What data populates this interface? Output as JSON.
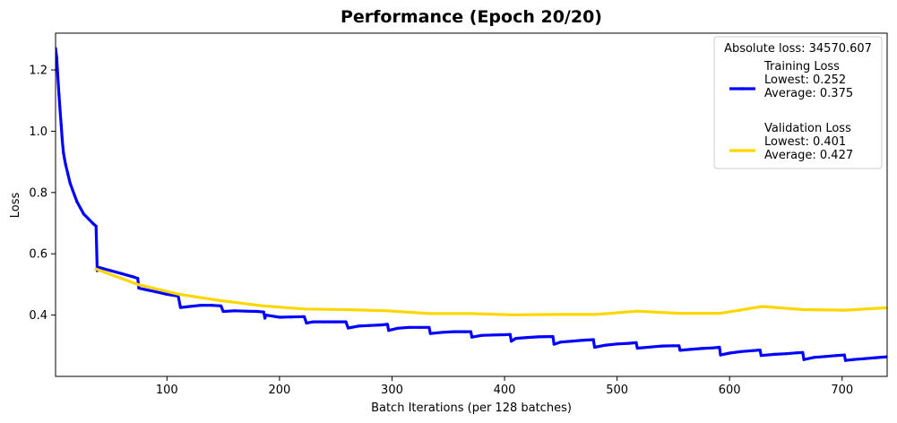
{
  "chart_data": {
    "type": "line",
    "title": "Performance (Epoch 20/20)",
    "xlabel": "Batch Iterations (per 128 batches)",
    "ylabel": "Loss",
    "xlim": [
      1,
      740
    ],
    "ylim": [
      0.2,
      1.32
    ],
    "x_ticks": [
      100,
      200,
      300,
      400,
      500,
      600,
      700
    ],
    "y_ticks": [
      0.4,
      0.6,
      0.8,
      1.0,
      1.2
    ],
    "grid": false,
    "legend": {
      "placement": "top-right",
      "title": "Absolute loss: 34570.607",
      "entries": [
        {
          "series": "Training Loss",
          "lines": [
            "Training Loss",
            "Lowest: 0.252",
            "Average: 0.375"
          ]
        },
        {
          "series": "Validation Loss",
          "lines": [
            "Validation Loss",
            "Lowest: 0.401",
            "Average: 0.427"
          ]
        }
      ]
    },
    "series": [
      {
        "name": "Training Loss",
        "color": "#0000ff",
        "points": [
          [
            1,
            1.27
          ],
          [
            2,
            1.24
          ],
          [
            3,
            1.18
          ],
          [
            4,
            1.12
          ],
          [
            5,
            1.07
          ],
          [
            6,
            1.02
          ],
          [
            7,
            0.97
          ],
          [
            8,
            0.93
          ],
          [
            9,
            0.91
          ],
          [
            10,
            0.89
          ],
          [
            12,
            0.86
          ],
          [
            14,
            0.83
          ],
          [
            16,
            0.81
          ],
          [
            18,
            0.79
          ],
          [
            20,
            0.77
          ],
          [
            23,
            0.75
          ],
          [
            26,
            0.73
          ],
          [
            30,
            0.715
          ],
          [
            34,
            0.7
          ],
          [
            37,
            0.69
          ],
          [
            38,
            0.545
          ],
          [
            40,
            0.555
          ],
          [
            50,
            0.545
          ],
          [
            60,
            0.535
          ],
          [
            70,
            0.525
          ],
          [
            74,
            0.52
          ],
          [
            75,
            0.488
          ],
          [
            80,
            0.484
          ],
          [
            90,
            0.476
          ],
          [
            100,
            0.468
          ],
          [
            110,
            0.462
          ],
          [
            112,
            0.425
          ],
          [
            120,
            0.428
          ],
          [
            130,
            0.432
          ],
          [
            140,
            0.432
          ],
          [
            148,
            0.43
          ],
          [
            150,
            0.412
          ],
          [
            160,
            0.414
          ],
          [
            170,
            0.413
          ],
          [
            180,
            0.412
          ],
          [
            186,
            0.41
          ],
          [
            187,
            0.39
          ],
          [
            188,
            0.4
          ],
          [
            200,
            0.393
          ],
          [
            210,
            0.394
          ],
          [
            222,
            0.395
          ],
          [
            224,
            0.374
          ],
          [
            230,
            0.378
          ],
          [
            240,
            0.378
          ],
          [
            250,
            0.378
          ],
          [
            259,
            0.378
          ],
          [
            261,
            0.358
          ],
          [
            270,
            0.364
          ],
          [
            280,
            0.366
          ],
          [
            290,
            0.368
          ],
          [
            296,
            0.37
          ],
          [
            297,
            0.35
          ],
          [
            305,
            0.357
          ],
          [
            315,
            0.36
          ],
          [
            325,
            0.36
          ],
          [
            333,
            0.36
          ],
          [
            334,
            0.34
          ],
          [
            345,
            0.344
          ],
          [
            355,
            0.346
          ],
          [
            365,
            0.346
          ],
          [
            370,
            0.346
          ],
          [
            371,
            0.328
          ],
          [
            380,
            0.334
          ],
          [
            390,
            0.335
          ],
          [
            400,
            0.336
          ],
          [
            405,
            0.337
          ],
          [
            406,
            0.315
          ],
          [
            410,
            0.324
          ],
          [
            420,
            0.327
          ],
          [
            430,
            0.329
          ],
          [
            443,
            0.33
          ],
          [
            444,
            0.305
          ],
          [
            450,
            0.312
          ],
          [
            460,
            0.315
          ],
          [
            470,
            0.318
          ],
          [
            479,
            0.32
          ],
          [
            480,
            0.295
          ],
          [
            490,
            0.302
          ],
          [
            500,
            0.306
          ],
          [
            510,
            0.308
          ],
          [
            517,
            0.31
          ],
          [
            518,
            0.292
          ],
          [
            530,
            0.296
          ],
          [
            540,
            0.299
          ],
          [
            550,
            0.3
          ],
          [
            555,
            0.3
          ],
          [
            556,
            0.285
          ],
          [
            565,
            0.288
          ],
          [
            575,
            0.291
          ],
          [
            585,
            0.293
          ],
          [
            591,
            0.295
          ],
          [
            592,
            0.27
          ],
          [
            600,
            0.276
          ],
          [
            610,
            0.281
          ],
          [
            620,
            0.284
          ],
          [
            627,
            0.286
          ],
          [
            628,
            0.268
          ],
          [
            640,
            0.272
          ],
          [
            650,
            0.274
          ],
          [
            660,
            0.277
          ],
          [
            665,
            0.278
          ],
          [
            666,
            0.255
          ],
          [
            675,
            0.262
          ],
          [
            685,
            0.265
          ],
          [
            695,
            0.268
          ],
          [
            702,
            0.27
          ],
          [
            703,
            0.252
          ],
          [
            710,
            0.255
          ],
          [
            720,
            0.258
          ],
          [
            730,
            0.261
          ],
          [
            740,
            0.264
          ]
        ]
      },
      {
        "name": "Validation Loss",
        "color": "#ffd700",
        "points": [
          [
            37,
            0.55
          ],
          [
            74,
            0.5
          ],
          [
            111,
            0.468
          ],
          [
            148,
            0.447
          ],
          [
            185,
            0.43
          ],
          [
            222,
            0.42
          ],
          [
            259,
            0.418
          ],
          [
            296,
            0.414
          ],
          [
            333,
            0.405
          ],
          [
            370,
            0.405
          ],
          [
            407,
            0.401
          ],
          [
            444,
            0.402
          ],
          [
            481,
            0.402
          ],
          [
            518,
            0.413
          ],
          [
            555,
            0.406
          ],
          [
            592,
            0.406
          ],
          [
            629,
            0.428
          ],
          [
            666,
            0.418
          ],
          [
            703,
            0.416
          ],
          [
            740,
            0.424
          ]
        ]
      }
    ]
  }
}
